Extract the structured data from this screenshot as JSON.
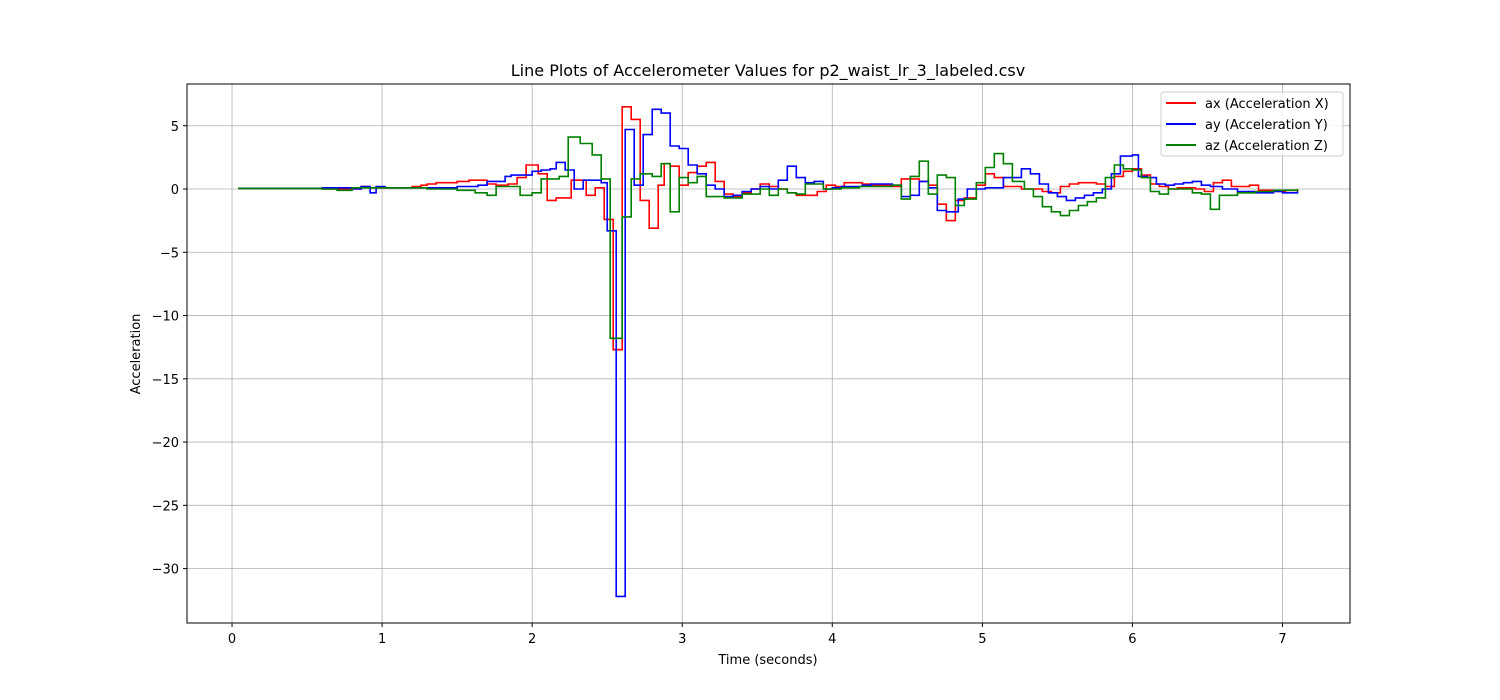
{
  "chart_data": {
    "type": "line",
    "title": "Line Plots of Accelerometer Values for p2_waist_lr_3_labeled.csv",
    "xlabel": "Time (seconds)",
    "ylabel": "Acceleration",
    "xlim": [
      -0.3,
      7.45
    ],
    "ylim": [
      -34.3,
      8.3
    ],
    "xticks": [
      0,
      1,
      2,
      3,
      4,
      5,
      6,
      7
    ],
    "yticks": [
      5,
      0,
      -5,
      -10,
      -15,
      -20,
      -25,
      -30
    ],
    "xtick_labels": [
      "0",
      "1",
      "2",
      "3",
      "4",
      "5",
      "6",
      "7"
    ],
    "ytick_labels": [
      "5",
      "0",
      "−5",
      "−10",
      "−15",
      "−20",
      "−25",
      "−30"
    ],
    "grid": true,
    "legend_position": "top-right",
    "series": [
      {
        "name": "ax (Acceleration X)",
        "color": "#ff0000",
        "points": [
          [
            0.04,
            0.05
          ],
          [
            0.5,
            0.05
          ],
          [
            0.6,
            0.0
          ],
          [
            0.8,
            0.0
          ],
          [
            0.86,
            0.2
          ],
          [
            0.92,
            0.1
          ],
          [
            1.0,
            0.1
          ],
          [
            1.2,
            0.2
          ],
          [
            1.26,
            0.3
          ],
          [
            1.3,
            0.4
          ],
          [
            1.36,
            0.5
          ],
          [
            1.5,
            0.6
          ],
          [
            1.58,
            0.7
          ],
          [
            1.7,
            0.4
          ],
          [
            1.76,
            0.3
          ],
          [
            1.84,
            0.4
          ],
          [
            1.9,
            0.9
          ],
          [
            1.96,
            1.9
          ],
          [
            2.04,
            1.2
          ],
          [
            2.1,
            -0.9
          ],
          [
            2.16,
            -0.7
          ],
          [
            2.26,
            0.7
          ],
          [
            2.36,
            -0.5
          ],
          [
            2.42,
            0.1
          ],
          [
            2.48,
            -2.4
          ],
          [
            2.54,
            -12.7
          ],
          [
            2.6,
            6.5
          ],
          [
            2.66,
            5.5
          ],
          [
            2.72,
            -0.9
          ],
          [
            2.78,
            -3.1
          ],
          [
            2.84,
            0.3
          ],
          [
            2.88,
            2.0
          ],
          [
            2.92,
            1.8
          ],
          [
            2.98,
            0.3
          ],
          [
            3.04,
            1.3
          ],
          [
            3.1,
            1.8
          ],
          [
            3.16,
            2.1
          ],
          [
            3.22,
            0.6
          ],
          [
            3.28,
            -0.4
          ],
          [
            3.34,
            -0.6
          ],
          [
            3.4,
            -0.3
          ],
          [
            3.46,
            0.0
          ],
          [
            3.52,
            0.4
          ],
          [
            3.58,
            0.2
          ],
          [
            3.64,
            0.0
          ],
          [
            3.7,
            -0.3
          ],
          [
            3.76,
            -0.5
          ],
          [
            3.9,
            -0.2
          ],
          [
            3.96,
            0.3
          ],
          [
            4.02,
            0.2
          ],
          [
            4.08,
            0.5
          ],
          [
            4.2,
            0.4
          ],
          [
            4.26,
            0.3
          ],
          [
            4.4,
            0.2
          ],
          [
            4.46,
            0.8
          ],
          [
            4.58,
            0.6
          ],
          [
            4.64,
            0.3
          ],
          [
            4.7,
            -1.2
          ],
          [
            4.76,
            -2.5
          ],
          [
            4.82,
            -0.9
          ],
          [
            4.88,
            -0.7
          ],
          [
            4.96,
            0.3
          ],
          [
            5.02,
            1.2
          ],
          [
            5.08,
            0.9
          ],
          [
            5.14,
            0.2
          ],
          [
            5.26,
            0.0
          ],
          [
            5.4,
            -0.2
          ],
          [
            5.46,
            -0.3
          ],
          [
            5.52,
            0.2
          ],
          [
            5.58,
            0.4
          ],
          [
            5.64,
            0.5
          ],
          [
            5.76,
            0.4
          ],
          [
            5.82,
            0.2
          ],
          [
            5.88,
            1.0
          ],
          [
            5.94,
            1.4
          ],
          [
            6.0,
            1.6
          ],
          [
            6.06,
            1.1
          ],
          [
            6.12,
            0.4
          ],
          [
            6.18,
            0.2
          ],
          [
            6.24,
            0.0
          ],
          [
            6.3,
            0.1
          ],
          [
            6.42,
            0.0
          ],
          [
            6.48,
            -0.2
          ],
          [
            6.54,
            0.5
          ],
          [
            6.6,
            0.7
          ],
          [
            6.66,
            0.2
          ],
          [
            6.78,
            0.3
          ],
          [
            6.84,
            -0.1
          ],
          [
            6.96,
            -0.2
          ],
          [
            7.02,
            -0.1
          ],
          [
            7.1,
            -0.2
          ]
        ]
      },
      {
        "name": "ay (Acceleration Y)",
        "color": "#0000ff",
        "points": [
          [
            0.04,
            0.05
          ],
          [
            0.6,
            0.1
          ],
          [
            0.8,
            0.0
          ],
          [
            0.86,
            0.2
          ],
          [
            0.92,
            -0.3
          ],
          [
            0.96,
            0.2
          ],
          [
            1.02,
            0.1
          ],
          [
            1.2,
            0.1
          ],
          [
            1.3,
            0.1
          ],
          [
            1.5,
            0.2
          ],
          [
            1.6,
            0.2
          ],
          [
            1.64,
            0.3
          ],
          [
            1.7,
            0.6
          ],
          [
            1.76,
            0.6
          ],
          [
            1.82,
            1.0
          ],
          [
            1.86,
            1.1
          ],
          [
            1.96,
            1.1
          ],
          [
            2.0,
            1.4
          ],
          [
            2.06,
            1.5
          ],
          [
            2.12,
            1.6
          ],
          [
            2.16,
            2.1
          ],
          [
            2.22,
            1.5
          ],
          [
            2.28,
            0.0
          ],
          [
            2.34,
            0.7
          ],
          [
            2.4,
            0.7
          ],
          [
            2.46,
            0.5
          ],
          [
            2.5,
            -3.3
          ],
          [
            2.56,
            -32.2
          ],
          [
            2.62,
            4.7
          ],
          [
            2.68,
            0.3
          ],
          [
            2.74,
            4.3
          ],
          [
            2.8,
            6.3
          ],
          [
            2.86,
            6.0
          ],
          [
            2.92,
            3.4
          ],
          [
            2.98,
            3.2
          ],
          [
            3.04,
            1.9
          ],
          [
            3.1,
            1.2
          ],
          [
            3.16,
            0.3
          ],
          [
            3.22,
            0.0
          ],
          [
            3.28,
            -0.6
          ],
          [
            3.34,
            -0.5
          ],
          [
            3.4,
            -0.2
          ],
          [
            3.46,
            0.0
          ],
          [
            3.52,
            0.2
          ],
          [
            3.58,
            0.0
          ],
          [
            3.64,
            0.7
          ],
          [
            3.7,
            1.8
          ],
          [
            3.76,
            0.9
          ],
          [
            3.82,
            0.5
          ],
          [
            3.88,
            0.6
          ],
          [
            3.94,
            0.0
          ],
          [
            4.0,
            0.1
          ],
          [
            4.06,
            0.2
          ],
          [
            4.2,
            0.3
          ],
          [
            4.26,
            0.4
          ],
          [
            4.4,
            0.3
          ],
          [
            4.46,
            -0.6
          ],
          [
            4.52,
            -0.5
          ],
          [
            4.58,
            0.6
          ],
          [
            4.64,
            0.1
          ],
          [
            4.7,
            -1.7
          ],
          [
            4.76,
            -1.8
          ],
          [
            4.84,
            -0.8
          ],
          [
            4.9,
            0.0
          ],
          [
            4.96,
            0.0
          ],
          [
            5.02,
            0.1
          ],
          [
            5.14,
            0.9
          ],
          [
            5.2,
            0.9
          ],
          [
            5.26,
            1.6
          ],
          [
            5.32,
            1.2
          ],
          [
            5.38,
            0.4
          ],
          [
            5.44,
            -0.3
          ],
          [
            5.5,
            -0.6
          ],
          [
            5.56,
            -0.9
          ],
          [
            5.62,
            -0.7
          ],
          [
            5.68,
            -0.5
          ],
          [
            5.74,
            -0.3
          ],
          [
            5.8,
            0.0
          ],
          [
            5.86,
            1.2
          ],
          [
            5.92,
            2.6
          ],
          [
            6.0,
            2.7
          ],
          [
            6.04,
            1.0
          ],
          [
            6.1,
            0.9
          ],
          [
            6.16,
            0.4
          ],
          [
            6.22,
            0.3
          ],
          [
            6.28,
            0.4
          ],
          [
            6.34,
            0.5
          ],
          [
            6.4,
            0.6
          ],
          [
            6.46,
            0.3
          ],
          [
            6.52,
            0.2
          ],
          [
            6.6,
            0.0
          ],
          [
            6.7,
            -0.2
          ],
          [
            6.82,
            -0.3
          ],
          [
            6.94,
            -0.2
          ],
          [
            7.0,
            -0.3
          ],
          [
            7.1,
            -0.2
          ]
        ]
      },
      {
        "name": "az (Acceleration Z)",
        "color": "#008000",
        "points": [
          [
            0.04,
            0.05
          ],
          [
            0.6,
            0.0
          ],
          [
            0.7,
            -0.1
          ],
          [
            0.8,
            0.1
          ],
          [
            0.9,
            0.1
          ],
          [
            1.3,
            0.0
          ],
          [
            1.5,
            -0.1
          ],
          [
            1.62,
            -0.3
          ],
          [
            1.7,
            -0.5
          ],
          [
            1.76,
            0.2
          ],
          [
            1.86,
            0.2
          ],
          [
            1.92,
            -0.5
          ],
          [
            2.0,
            -0.3
          ],
          [
            2.06,
            0.8
          ],
          [
            2.18,
            1.0
          ],
          [
            2.24,
            4.1
          ],
          [
            2.32,
            3.6
          ],
          [
            2.4,
            2.7
          ],
          [
            2.46,
            0.8
          ],
          [
            2.52,
            -11.8
          ],
          [
            2.6,
            -2.2
          ],
          [
            2.66,
            0.8
          ],
          [
            2.72,
            1.2
          ],
          [
            2.8,
            1.0
          ],
          [
            2.86,
            2.0
          ],
          [
            2.92,
            -1.8
          ],
          [
            2.98,
            0.9
          ],
          [
            3.04,
            0.5
          ],
          [
            3.1,
            1.0
          ],
          [
            3.16,
            -0.6
          ],
          [
            3.28,
            -0.7
          ],
          [
            3.4,
            -0.4
          ],
          [
            3.52,
            0.0
          ],
          [
            3.58,
            -0.5
          ],
          [
            3.64,
            0.0
          ],
          [
            3.7,
            -0.3
          ],
          [
            3.76,
            -0.4
          ],
          [
            3.82,
            0.4
          ],
          [
            3.94,
            0.0
          ],
          [
            4.06,
            0.1
          ],
          [
            4.18,
            0.2
          ],
          [
            4.4,
            0.3
          ],
          [
            4.46,
            -0.8
          ],
          [
            4.52,
            1.0
          ],
          [
            4.58,
            2.2
          ],
          [
            4.64,
            -0.4
          ],
          [
            4.7,
            1.1
          ],
          [
            4.76,
            0.9
          ],
          [
            4.82,
            -1.3
          ],
          [
            4.88,
            -0.8
          ],
          [
            4.96,
            0.5
          ],
          [
            5.02,
            1.7
          ],
          [
            5.08,
            2.8
          ],
          [
            5.14,
            2.0
          ],
          [
            5.2,
            0.6
          ],
          [
            5.28,
            0.0
          ],
          [
            5.34,
            -0.6
          ],
          [
            5.4,
            -1.4
          ],
          [
            5.46,
            -1.8
          ],
          [
            5.52,
            -2.1
          ],
          [
            5.58,
            -1.7
          ],
          [
            5.64,
            -1.3
          ],
          [
            5.7,
            -1.0
          ],
          [
            5.76,
            -0.7
          ],
          [
            5.82,
            0.9
          ],
          [
            5.88,
            1.9
          ],
          [
            5.94,
            1.6
          ],
          [
            6.0,
            1.5
          ],
          [
            6.06,
            0.9
          ],
          [
            6.12,
            -0.2
          ],
          [
            6.18,
            -0.4
          ],
          [
            6.24,
            0.0
          ],
          [
            6.3,
            0.0
          ],
          [
            6.4,
            -0.3
          ],
          [
            6.46,
            -0.4
          ],
          [
            6.52,
            -1.6
          ],
          [
            6.58,
            -0.5
          ],
          [
            6.7,
            -0.3
          ],
          [
            6.82,
            -0.2
          ],
          [
            6.94,
            -0.1
          ],
          [
            7.1,
            0.0
          ]
        ]
      }
    ]
  }
}
